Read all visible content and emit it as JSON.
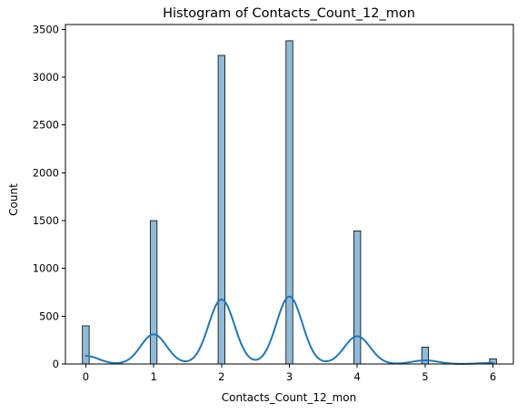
{
  "chart_data": {
    "type": "bar",
    "title": "Histogram of Contacts_Count_12_mon",
    "xlabel": "Contacts_Count_12_mon",
    "ylabel": "Count",
    "xlim": [
      -0.3,
      6.3
    ],
    "ylim": [
      0,
      3550
    ],
    "xticks": [
      0,
      1,
      2,
      3,
      4,
      5,
      6
    ],
    "yticks": [
      0,
      500,
      1000,
      1500,
      2000,
      2500,
      3000,
      3500
    ],
    "grid": false,
    "legend": "none",
    "bin_width": 0.1,
    "bars": [
      {
        "x": 0,
        "value": 399
      },
      {
        "x": 1,
        "value": 1499
      },
      {
        "x": 2,
        "value": 3227
      },
      {
        "x": 3,
        "value": 3380
      },
      {
        "x": 4,
        "value": 1392
      },
      {
        "x": 5,
        "value": 176
      },
      {
        "x": 6,
        "value": 54
      }
    ],
    "kde": {
      "peaks": [
        {
          "x": 0,
          "y": 85
        },
        {
          "x": 1,
          "y": 310
        },
        {
          "x": 2,
          "y": 675
        },
        {
          "x": 3,
          "y": 705
        },
        {
          "x": 4,
          "y": 290
        },
        {
          "x": 5,
          "y": 38
        },
        {
          "x": 6,
          "y": 12
        }
      ]
    },
    "colors": {
      "bar_fill": "#1f77b4",
      "bar_fill_opacity": 0.5,
      "bar_edge": "#000000",
      "kde_line": "#1f77b4"
    }
  }
}
